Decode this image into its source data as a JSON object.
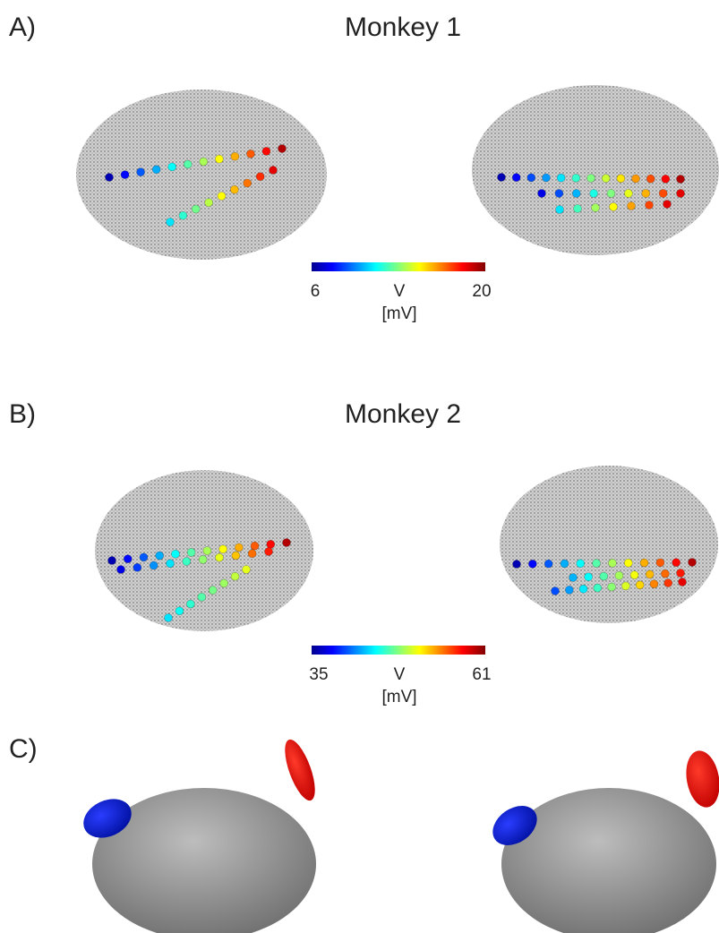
{
  "panels": [
    {
      "label": "A)",
      "title": "Monkey 1",
      "colorbar": {
        "min": 6,
        "max": 20,
        "variable": "V",
        "unit": "[mV]"
      }
    },
    {
      "label": "B)",
      "title": "Monkey 2",
      "colorbar": {
        "min": 35,
        "max": 61,
        "variable": "V",
        "unit": "[mV]"
      }
    },
    {
      "label": "C)"
    }
  ]
}
